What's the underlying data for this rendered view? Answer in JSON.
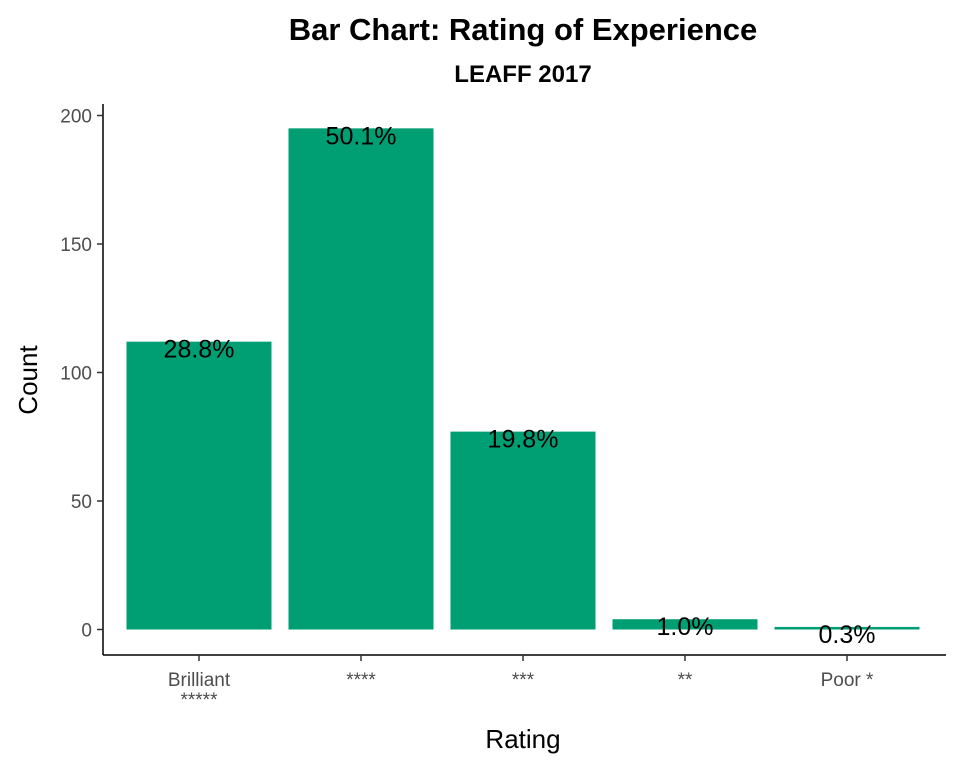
{
  "chart_data": {
    "type": "bar",
    "title": "Bar Chart: Rating of Experience",
    "subtitle": "LEAFF 2017",
    "xlabel": "Rating",
    "ylabel": "Count",
    "categories": [
      [
        "Brilliant",
        "*****"
      ],
      [
        "****"
      ],
      [
        "***"
      ],
      [
        "**"
      ],
      [
        "Poor *"
      ]
    ],
    "values": [
      112,
      195,
      77,
      4,
      1
    ],
    "data_labels": [
      "28.8%",
      "50.1%",
      "19.8%",
      "1.0%",
      "0.3%"
    ],
    "ylim": [
      0,
      205
    ],
    "yticks": [
      0,
      50,
      100,
      150,
      200
    ],
    "bar_color": "#009E73",
    "grid": false,
    "legend": "none"
  }
}
